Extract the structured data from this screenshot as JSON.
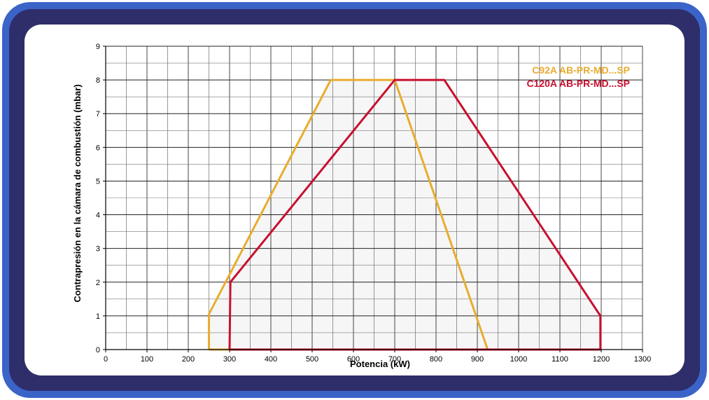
{
  "chart_data": {
    "type": "area",
    "xlabel": "Potencia (kW)",
    "ylabel": "Contrapresión en la cámara de combustión (mbar)",
    "xlim": [
      0,
      1300
    ],
    "ylim": [
      0,
      9
    ],
    "x_ticks": [
      0,
      100,
      200,
      300,
      400,
      500,
      600,
      700,
      800,
      900,
      1000,
      1100,
      1200,
      1300
    ],
    "y_ticks": [
      0,
      1,
      2,
      3,
      4,
      5,
      6,
      7,
      8,
      9
    ],
    "x_minor_step": 50,
    "y_minor_step": 0.5,
    "grid": true,
    "legend_position": "top-right",
    "series": [
      {
        "name": "C92A AB-PR-MD...SP",
        "color": "#e8ac2e",
        "x": [
          250,
          250,
          545,
          700,
          925,
          250
        ],
        "y": [
          0,
          1.05,
          8,
          8,
          0,
          0
        ]
      },
      {
        "name": "C120A AB-PR-MD...SP",
        "color": "#c8102e",
        "x": [
          300,
          302,
          700,
          820,
          1198,
          1198,
          300
        ],
        "y": [
          0,
          2,
          8,
          8,
          1,
          0,
          0
        ]
      }
    ]
  },
  "colors": {
    "frame_outer": "#3b64c8",
    "frame_inner": "#2e2e6a",
    "fill_region": "#f6f6f6"
  }
}
